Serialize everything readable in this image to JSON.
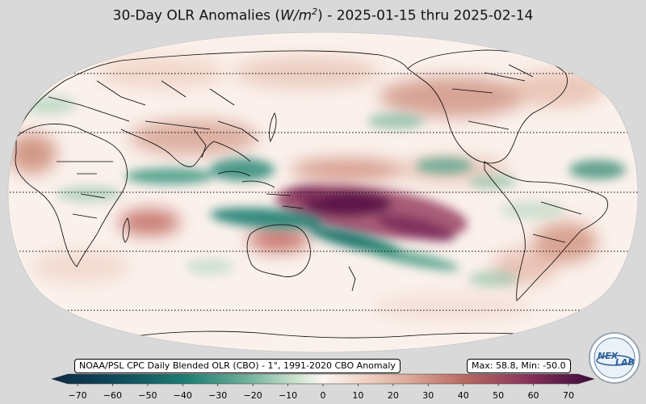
{
  "title": {
    "prefix": "30-Day OLR Anomalies (",
    "unit_base": "W/m",
    "unit_exp": "2",
    "suffix": ") - 2025-01-15 thru 2025-02-14"
  },
  "source_label": "NOAA/PSL CPC Daily Blended OLR (CBO) - 1°, 1991-2020 CBO Anomaly",
  "stats_label": "Max: 58.8,  Min: -50.0",
  "colorbar": {
    "ticks": [
      "−70",
      "−60",
      "−50",
      "−40",
      "−30",
      "−20",
      "−10",
      "0",
      "10",
      "20",
      "30",
      "40",
      "50",
      "60",
      "70"
    ],
    "min": -70,
    "max": 70
  },
  "logo": {
    "text_left": "NEX",
    "text_right": "LAB"
  },
  "colors": {
    "background": "#d9d9d9",
    "negative_strong": "#0d3b4f",
    "negative_mid": "#1f8a7a",
    "negative_light": "#cfe3d2",
    "neutral": "#fbf3ee",
    "positive_light": "#edc9b8",
    "positive_mid": "#c47d6c",
    "positive_strong": "#4f1242"
  }
}
